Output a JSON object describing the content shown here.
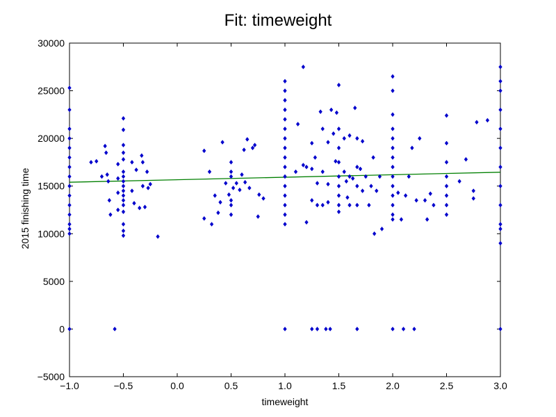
{
  "chart_data": {
    "type": "scatter",
    "title": "Fit: timeweight",
    "xlabel": "timeweight",
    "ylabel": "2015 finishing time",
    "xlim": [
      -1.0,
      3.0
    ],
    "ylim": [
      -5000,
      30000
    ],
    "x_ticks": [
      "−1.0",
      "−0.5",
      "0.0",
      "0.5",
      "1.0",
      "1.5",
      "2.0",
      "2.5",
      "3.0"
    ],
    "x_tick_values": [
      -1.0,
      -0.5,
      0.0,
      0.5,
      1.0,
      1.5,
      2.0,
      2.5,
      3.0
    ],
    "y_ticks": [
      "−5000",
      "0",
      "5000",
      "10000",
      "15000",
      "20000",
      "25000",
      "30000"
    ],
    "y_tick_values": [
      -5000,
      0,
      5000,
      10000,
      15000,
      20000,
      25000,
      30000
    ],
    "grid": false,
    "series": [
      {
        "kind": "scatter",
        "color": "#0000cc",
        "points": [
          [
            -1.0,
            25300
          ],
          [
            -1.0,
            23000
          ],
          [
            -1.0,
            21000
          ],
          [
            -1.0,
            20000
          ],
          [
            -1.0,
            19000
          ],
          [
            -1.0,
            18000
          ],
          [
            -1.0,
            17000
          ],
          [
            -1.0,
            16000
          ],
          [
            -1.0,
            15000
          ],
          [
            -1.0,
            14000
          ],
          [
            -1.0,
            13000
          ],
          [
            -1.0,
            12000
          ],
          [
            -1.0,
            11000
          ],
          [
            -1.0,
            10500
          ],
          [
            -1.0,
            10000
          ],
          [
            -1.0,
            0
          ],
          [
            -0.8,
            17500
          ],
          [
            -0.75,
            17600
          ],
          [
            -0.7,
            16000
          ],
          [
            -0.67,
            19200
          ],
          [
            -0.66,
            18500
          ],
          [
            -0.65,
            16200
          ],
          [
            -0.64,
            15500
          ],
          [
            -0.63,
            13500
          ],
          [
            -0.62,
            12000
          ],
          [
            -0.58,
            0
          ],
          [
            -0.55,
            17300
          ],
          [
            -0.55,
            15800
          ],
          [
            -0.55,
            14300
          ],
          [
            -0.55,
            12500
          ],
          [
            -0.5,
            22100
          ],
          [
            -0.5,
            20900
          ],
          [
            -0.5,
            19300
          ],
          [
            -0.5,
            18500
          ],
          [
            -0.5,
            17800
          ],
          [
            -0.5,
            16500
          ],
          [
            -0.5,
            16000
          ],
          [
            -0.5,
            15500
          ],
          [
            -0.5,
            15000
          ],
          [
            -0.5,
            14500
          ],
          [
            -0.5,
            14000
          ],
          [
            -0.5,
            13500
          ],
          [
            -0.5,
            13000
          ],
          [
            -0.5,
            12300
          ],
          [
            -0.5,
            11000
          ],
          [
            -0.5,
            10300
          ],
          [
            -0.5,
            9800
          ],
          [
            -0.42,
            17500
          ],
          [
            -0.42,
            14500
          ],
          [
            -0.4,
            13200
          ],
          [
            -0.38,
            16700
          ],
          [
            -0.35,
            12700
          ],
          [
            -0.33,
            18200
          ],
          [
            -0.32,
            17500
          ],
          [
            -0.32,
            15000
          ],
          [
            -0.3,
            12800
          ],
          [
            -0.28,
            16500
          ],
          [
            -0.27,
            14800
          ],
          [
            -0.25,
            15200
          ],
          [
            -0.18,
            9700
          ],
          [
            0.25,
            18700
          ],
          [
            0.25,
            11600
          ],
          [
            0.3,
            16500
          ],
          [
            0.32,
            11000
          ],
          [
            0.35,
            14000
          ],
          [
            0.38,
            12200
          ],
          [
            0.4,
            13300
          ],
          [
            0.42,
            19600
          ],
          [
            0.45,
            15300
          ],
          [
            0.48,
            14100
          ],
          [
            0.5,
            17500
          ],
          [
            0.5,
            16500
          ],
          [
            0.5,
            16000
          ],
          [
            0.5,
            13500
          ],
          [
            0.5,
            13000
          ],
          [
            0.5,
            12000
          ],
          [
            0.52,
            14800
          ],
          [
            0.55,
            15300
          ],
          [
            0.58,
            14600
          ],
          [
            0.6,
            16200
          ],
          [
            0.62,
            18800
          ],
          [
            0.63,
            15400
          ],
          [
            0.65,
            19900
          ],
          [
            0.67,
            14800
          ],
          [
            0.7,
            19000
          ],
          [
            0.72,
            19300
          ],
          [
            0.76,
            14100
          ],
          [
            0.8,
            13700
          ],
          [
            0.75,
            11800
          ],
          [
            1.0,
            26000
          ],
          [
            1.0,
            25000
          ],
          [
            1.0,
            24000
          ],
          [
            1.0,
            23000
          ],
          [
            1.0,
            22000
          ],
          [
            1.0,
            21000
          ],
          [
            1.0,
            20000
          ],
          [
            1.0,
            19000
          ],
          [
            1.0,
            18000
          ],
          [
            1.0,
            17000
          ],
          [
            1.0,
            16000
          ],
          [
            1.0,
            15000
          ],
          [
            1.0,
            14000
          ],
          [
            1.0,
            13000
          ],
          [
            1.0,
            12000
          ],
          [
            1.0,
            11000
          ],
          [
            1.0,
            0
          ],
          [
            1.1,
            16500
          ],
          [
            1.12,
            21500
          ],
          [
            1.17,
            27500
          ],
          [
            1.17,
            17200
          ],
          [
            1.2,
            17000
          ],
          [
            1.2,
            11200
          ],
          [
            1.25,
            0
          ],
          [
            1.25,
            19500
          ],
          [
            1.25,
            16800
          ],
          [
            1.25,
            13500
          ],
          [
            1.28,
            18000
          ],
          [
            1.3,
            15300
          ],
          [
            1.3,
            13000
          ],
          [
            1.3,
            0
          ],
          [
            1.33,
            22800
          ],
          [
            1.35,
            21000
          ],
          [
            1.35,
            16500
          ],
          [
            1.35,
            13000
          ],
          [
            1.38,
            0
          ],
          [
            1.4,
            19600
          ],
          [
            1.4,
            15200
          ],
          [
            1.4,
            13300
          ],
          [
            1.42,
            0
          ],
          [
            1.43,
            23000
          ],
          [
            1.45,
            20500
          ],
          [
            1.47,
            17600
          ],
          [
            1.48,
            22700
          ],
          [
            1.5,
            25600
          ],
          [
            1.5,
            21000
          ],
          [
            1.5,
            19000
          ],
          [
            1.5,
            17500
          ],
          [
            1.5,
            16000
          ],
          [
            1.5,
            15000
          ],
          [
            1.5,
            14000
          ],
          [
            1.5,
            13000
          ],
          [
            1.5,
            12300
          ],
          [
            1.55,
            20000
          ],
          [
            1.55,
            16500
          ],
          [
            1.57,
            15500
          ],
          [
            1.58,
            13800
          ],
          [
            1.6,
            20300
          ],
          [
            1.6,
            16000
          ],
          [
            1.6,
            13000
          ],
          [
            1.63,
            15800
          ],
          [
            1.65,
            23200
          ],
          [
            1.67,
            20000
          ],
          [
            1.67,
            17000
          ],
          [
            1.67,
            15000
          ],
          [
            1.67,
            13000
          ],
          [
            1.67,
            0
          ],
          [
            1.7,
            16800
          ],
          [
            1.72,
            19700
          ],
          [
            1.72,
            14500
          ],
          [
            1.75,
            16000
          ],
          [
            1.78,
            13000
          ],
          [
            1.8,
            15000
          ],
          [
            1.82,
            18000
          ],
          [
            1.83,
            10000
          ],
          [
            1.85,
            14500
          ],
          [
            1.88,
            16000
          ],
          [
            1.9,
            10500
          ],
          [
            2.0,
            26500
          ],
          [
            2.0,
            25000
          ],
          [
            2.0,
            22500
          ],
          [
            2.0,
            21000
          ],
          [
            2.0,
            20000
          ],
          [
            2.0,
            19000
          ],
          [
            2.0,
            18000
          ],
          [
            2.0,
            17000
          ],
          [
            2.0,
            16000
          ],
          [
            2.0,
            15000
          ],
          [
            2.0,
            14000
          ],
          [
            2.0,
            13000
          ],
          [
            2.0,
            12000
          ],
          [
            2.0,
            11500
          ],
          [
            2.0,
            0
          ],
          [
            2.05,
            14300
          ],
          [
            2.08,
            11500
          ],
          [
            2.1,
            0
          ],
          [
            2.12,
            14000
          ],
          [
            2.15,
            16000
          ],
          [
            2.18,
            19000
          ],
          [
            2.2,
            0
          ],
          [
            2.22,
            13500
          ],
          [
            2.25,
            20000
          ],
          [
            2.3,
            13500
          ],
          [
            2.32,
            11500
          ],
          [
            2.35,
            14200
          ],
          [
            2.38,
            13000
          ],
          [
            2.5,
            22400
          ],
          [
            2.5,
            19500
          ],
          [
            2.5,
            17500
          ],
          [
            2.5,
            16000
          ],
          [
            2.5,
            15000
          ],
          [
            2.5,
            14000
          ],
          [
            2.5,
            13000
          ],
          [
            2.5,
            12000
          ],
          [
            2.62,
            15500
          ],
          [
            2.68,
            17800
          ],
          [
            2.75,
            14500
          ],
          [
            2.75,
            13700
          ],
          [
            2.78,
            21700
          ],
          [
            2.88,
            21900
          ],
          [
            3.0,
            27500
          ],
          [
            3.0,
            26000
          ],
          [
            3.0,
            25000
          ],
          [
            3.0,
            23000
          ],
          [
            3.0,
            21000
          ],
          [
            3.0,
            19000
          ],
          [
            3.0,
            17000
          ],
          [
            3.0,
            15000
          ],
          [
            3.0,
            13000
          ],
          [
            3.0,
            11000
          ],
          [
            3.0,
            10500
          ],
          [
            3.0,
            9000
          ],
          [
            3.0,
            0
          ]
        ]
      },
      {
        "kind": "line",
        "color": "#007f00",
        "points": [
          [
            -1.0,
            15400
          ],
          [
            3.0,
            16450
          ]
        ]
      }
    ]
  }
}
